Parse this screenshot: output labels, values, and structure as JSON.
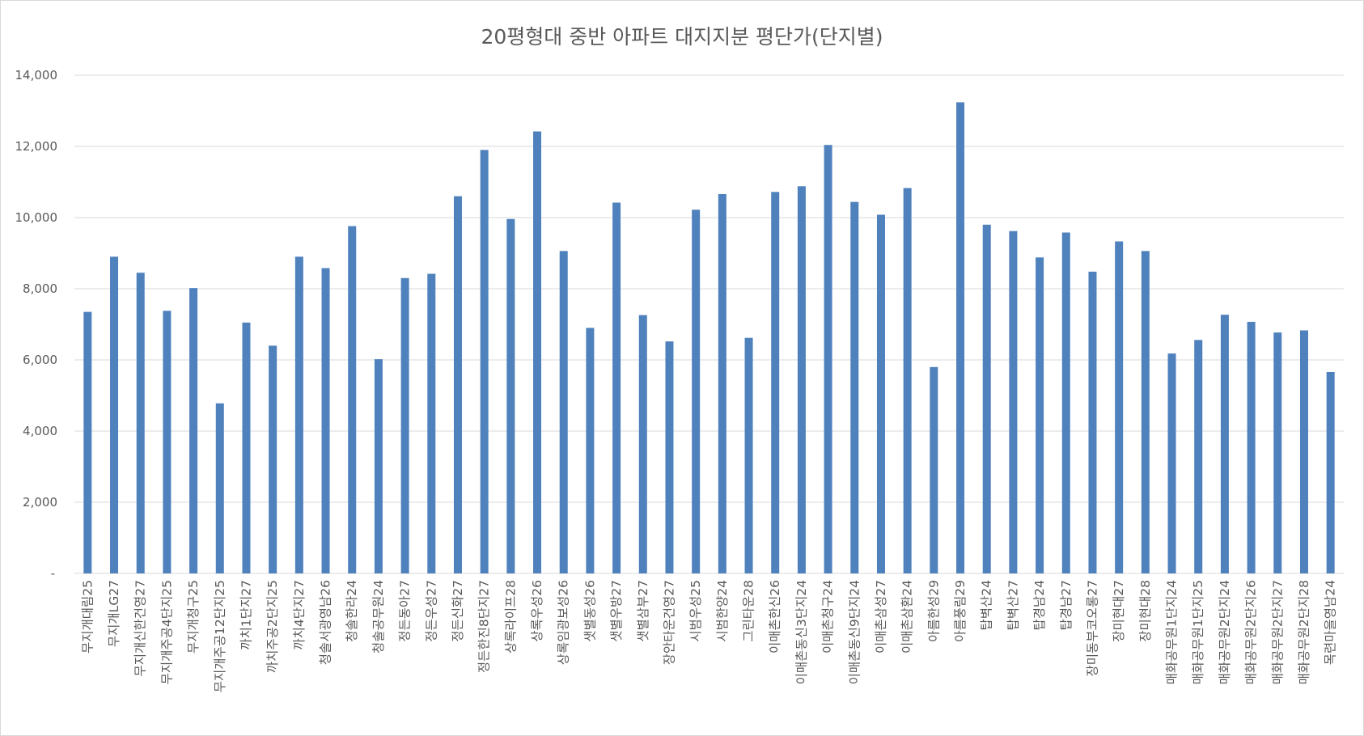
{
  "chart_data": {
    "type": "bar",
    "title": "20평형대 중반 아파트 대지지분 평단가(단지별)",
    "xlabel": "",
    "ylabel": "",
    "ylim": [
      0,
      14000
    ],
    "y_ticks": [
      0,
      2000,
      4000,
      6000,
      8000,
      10000,
      12000,
      14000
    ],
    "y_tick_labels": [
      "-",
      "2,000",
      "4,000",
      "6,000",
      "8,000",
      "10,000",
      "12,000",
      "14,000"
    ],
    "grid": true,
    "legend": "none",
    "bar_color": "#4f81bd",
    "categories": [
      "무지개대림25",
      "무지개LG27",
      "무지개신한건영27",
      "무지개주공4단지25",
      "무지개청구25",
      "무지개주공12단지25",
      "까치1단지27",
      "까치주공2단지25",
      "까치4단지27",
      "청솔서광영남26",
      "청솔한라24",
      "청솔공무원24",
      "정든동아27",
      "정든우성27",
      "정든신화27",
      "정든한진8단지27",
      "상록라이프28",
      "상록우성26",
      "상록임광보성26",
      "샛별동성26",
      "샛별우방27",
      "샛별삼부27",
      "장안타운건영27",
      "시범우성25",
      "시범한양24",
      "그린타운28",
      "이매촌한신26",
      "이매촌동신3단지24",
      "이매촌청구24",
      "이매촌동신9단지24",
      "이매촌삼성27",
      "이매촌삼환24",
      "아름한성29",
      "아름풍림29",
      "탑벽산24",
      "탑벽산27",
      "탑경남24",
      "탑경남27",
      "장미동부코오롱27",
      "장미현대27",
      "장미현대28",
      "매화공무원1단지24",
      "매화공무원1단지25",
      "매화공무원2단지24",
      "매화공무원2단지26",
      "매화공무원2단지27",
      "매화공무원2단지28",
      "목련마을영남24"
    ],
    "values": [
      7350,
      8900,
      8450,
      7380,
      8020,
      4780,
      7050,
      6400,
      8900,
      8580,
      9760,
      6020,
      8300,
      8420,
      10600,
      11900,
      9960,
      12420,
      9060,
      6900,
      10420,
      7260,
      6520,
      10220,
      10660,
      6620,
      10720,
      10880,
      12040,
      10440,
      10080,
      10830,
      5800,
      13240,
      9800,
      9620,
      8880,
      9580,
      8480,
      9330,
      9060,
      6180,
      6560,
      7270,
      7070,
      6770,
      6830,
      5660
    ]
  }
}
